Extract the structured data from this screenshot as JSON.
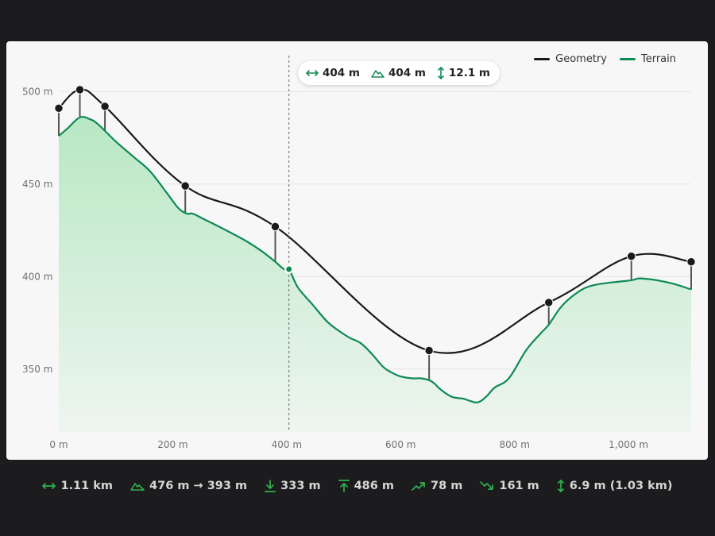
{
  "colors": {
    "geometry": "#1a1a1a",
    "terrain": "#0f8a54",
    "terrain_fill_top": "#b8e8c4",
    "icon_green": "#2fb24c",
    "tooltip_green": "#138a56"
  },
  "legend": [
    {
      "label": "Geometry",
      "color": "#1a1a1a"
    },
    {
      "label": "Terrain",
      "color": "#0f8a54"
    }
  ],
  "tooltip": {
    "distance": "404 m",
    "terrain_elevation": "404 m",
    "height_diff": "12.1 m",
    "distance_icon": "horizontal-arrows-icon",
    "terrain_icon": "mountain-icon",
    "height_icon": "vertical-arrows-icon"
  },
  "stats": {
    "length": "1.11 km",
    "elevation_range": "476 m → 393 m",
    "min": "333 m",
    "max": "486 m",
    "ascent": "78 m",
    "descent": "161 m",
    "height": "6.9 m (1.03 km)"
  },
  "chart_data": {
    "type": "area",
    "xlim": [
      0,
      1110
    ],
    "ylim": [
      316,
      510
    ],
    "x_ticks": [
      0,
      200,
      400,
      600,
      800,
      1000
    ],
    "x_tick_labels": [
      "0 m",
      "200 m",
      "400 m",
      "600 m",
      "800 m",
      "1,000 m"
    ],
    "y_ticks": [
      350,
      400,
      450,
      500
    ],
    "y_tick_labels": [
      "350 m",
      "400 m",
      "450 m",
      "500 m"
    ],
    "grid": true,
    "legend": "top-right",
    "cursor_x": 404,
    "series": [
      {
        "name": "Geometry",
        "type": "line",
        "x": [
          0,
          37,
          81,
          222,
          380,
          650,
          860,
          1005,
          1110
        ],
        "y": [
          491,
          501,
          492,
          449,
          427,
          360,
          386,
          411,
          408
        ],
        "markers": [
          0,
          37,
          81,
          222,
          380,
          650,
          860,
          1005,
          1110
        ]
      },
      {
        "name": "Terrain",
        "type": "area",
        "x": [
          0,
          15,
          37,
          55,
          70,
          100,
          130,
          160,
          190,
          210,
          225,
          235,
          255,
          275,
          300,
          330,
          355,
          380,
          395,
          404,
          420,
          445,
          470,
          490,
          510,
          530,
          550,
          570,
          585,
          600,
          620,
          635,
          650,
          660,
          670,
          690,
          710,
          720,
          735,
          750,
          765,
          790,
          820,
          845,
          860,
          880,
          900,
          925,
          950,
          975,
          1005,
          1020,
          1050,
          1080,
          1110
        ],
        "y": [
          476,
          480,
          486,
          485,
          482,
          473,
          465,
          457,
          445,
          437,
          434,
          434,
          431,
          428,
          424,
          419,
          414,
          408,
          404,
          404,
          394,
          385,
          376,
          371,
          367,
          364,
          358,
          351,
          348,
          346,
          345,
          345,
          344,
          342,
          339,
          335,
          334,
          333,
          332,
          335,
          340,
          345,
          360,
          369,
          374,
          383,
          389,
          394,
          396,
          397,
          398,
          399,
          398,
          396,
          393
        ]
      }
    ]
  }
}
